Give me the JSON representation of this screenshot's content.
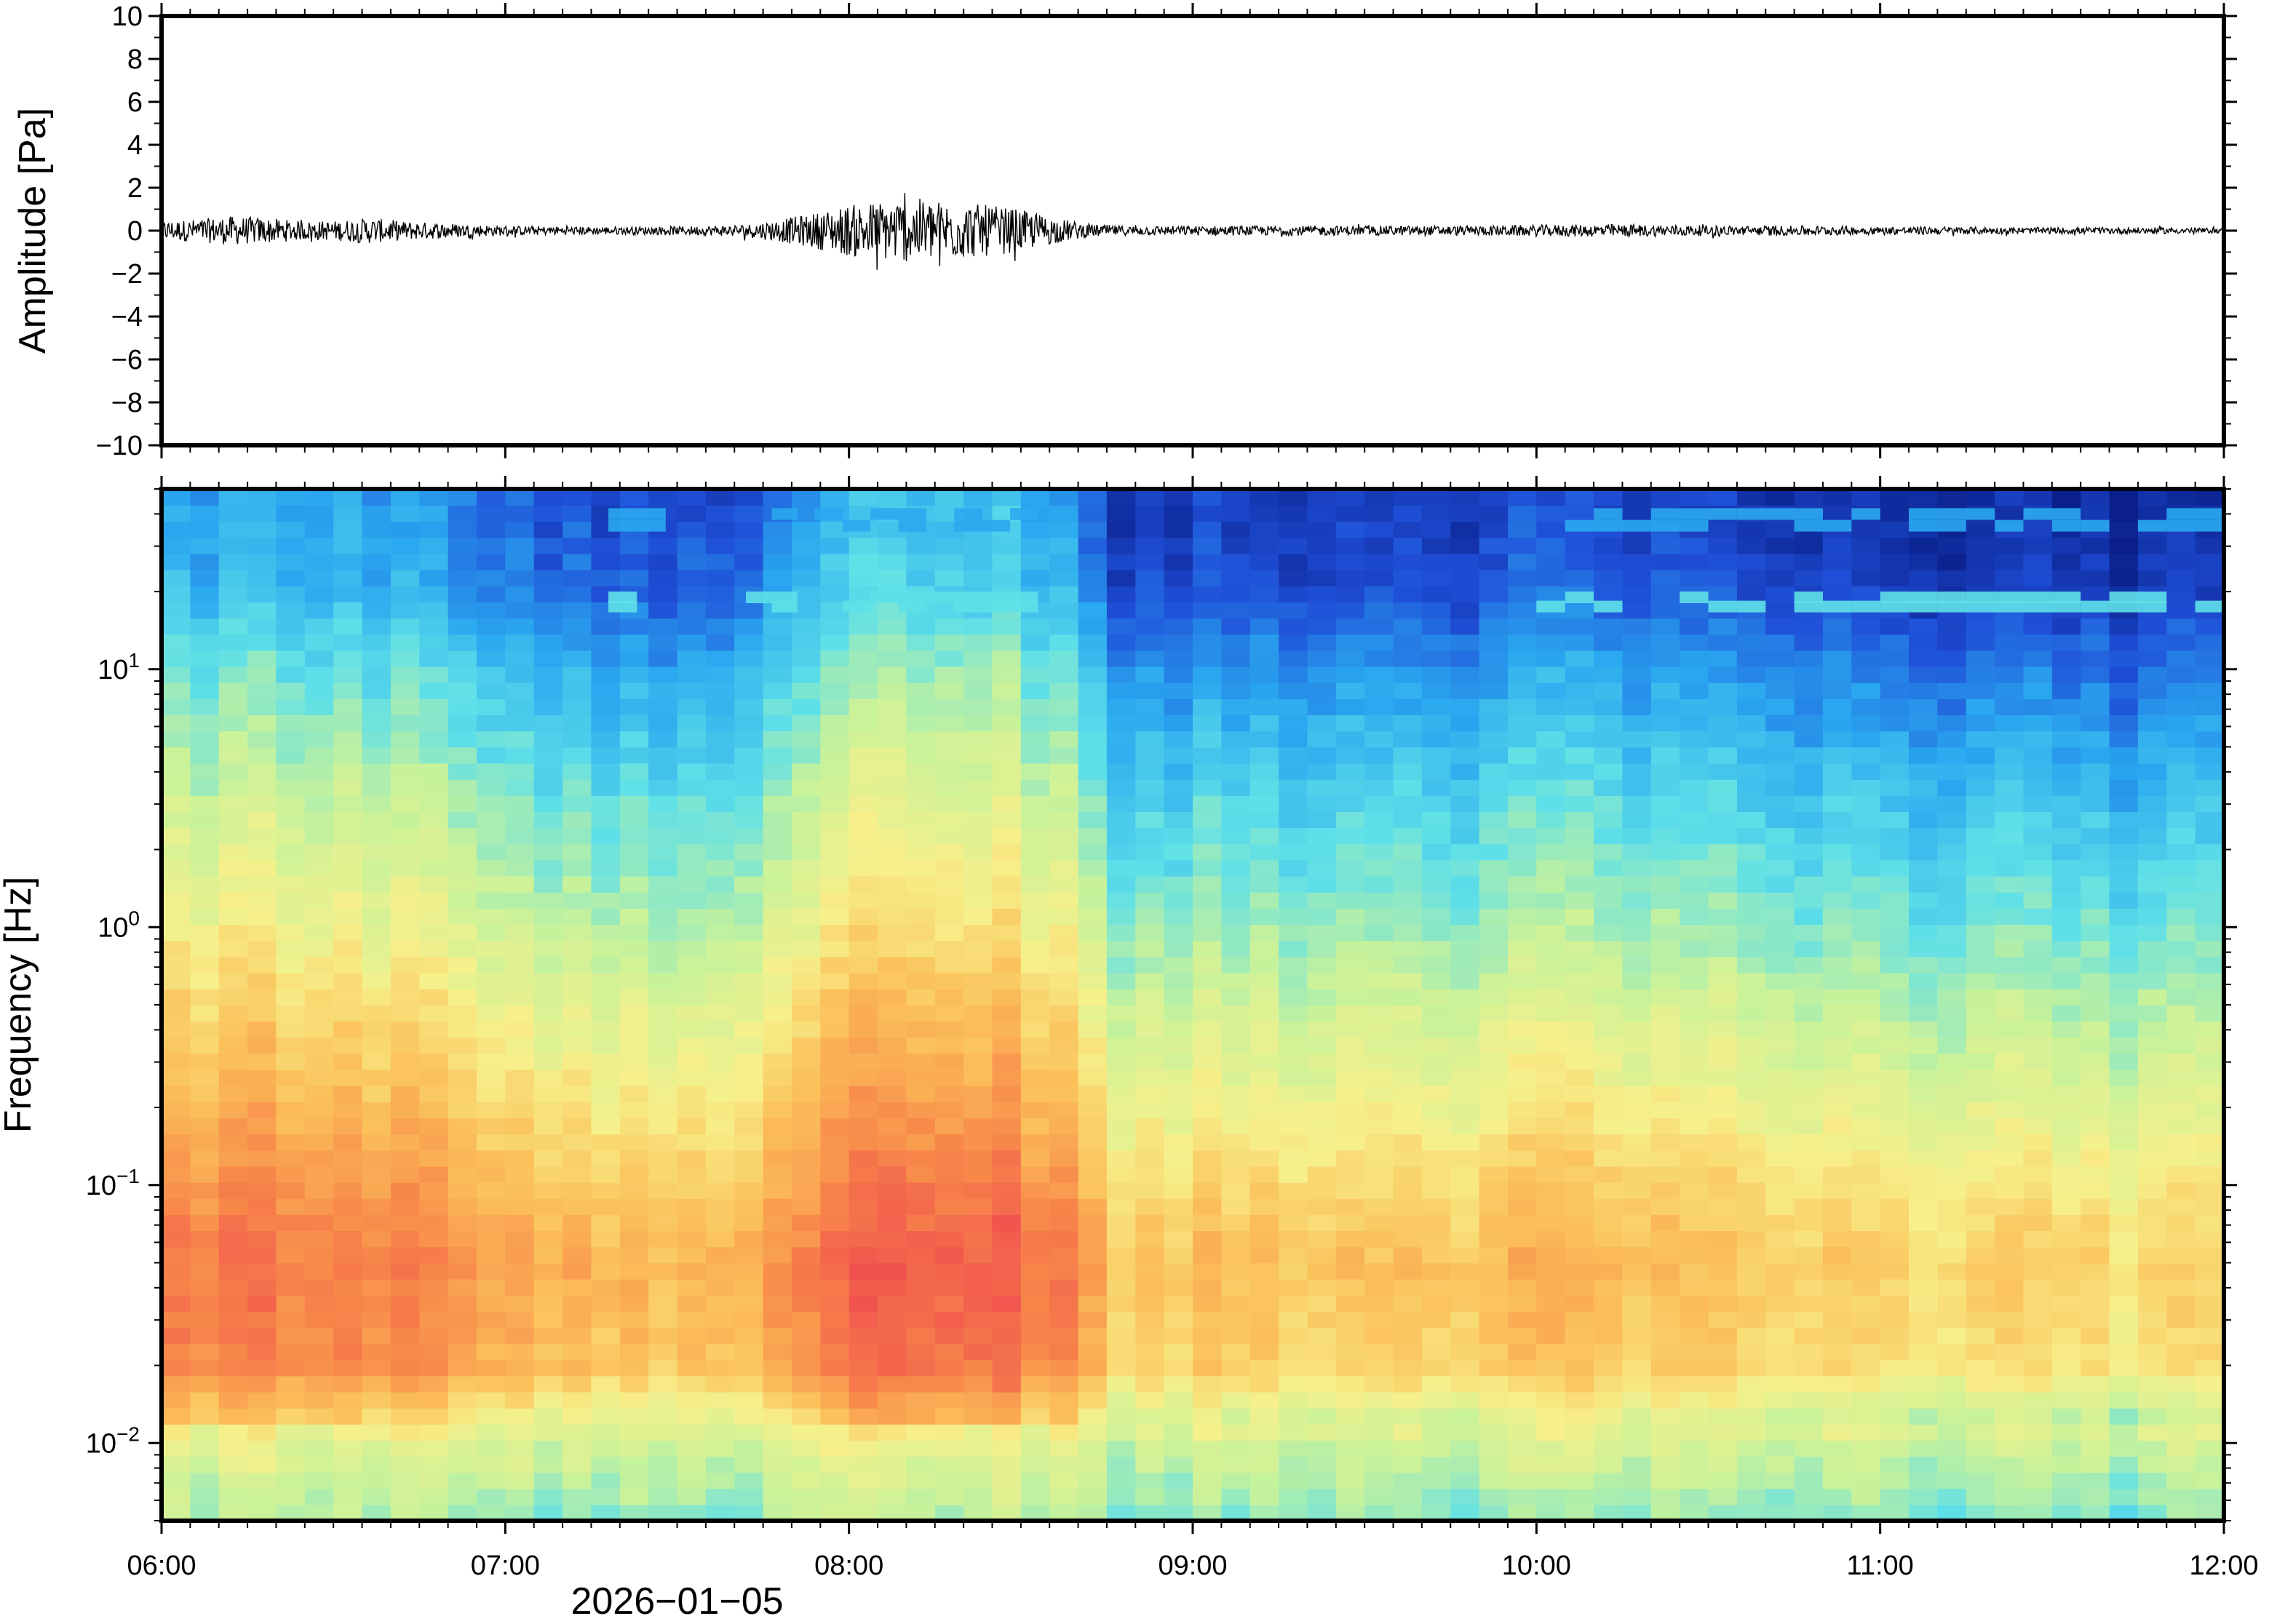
{
  "chart_data": [
    {
      "type": "line",
      "panel": "waveform",
      "ylabel": "Amplitude [Pa]",
      "ylim": [
        -10,
        10
      ],
      "yticks": [
        10,
        8,
        6,
        4,
        2,
        0,
        -2,
        -4,
        -6,
        -8,
        -10
      ],
      "ytick_labels": [
        "10",
        "8",
        "6",
        "4",
        "2",
        "0",
        "−2",
        "−4",
        "−6",
        "−8",
        "−10"
      ],
      "xlim_hours": [
        6.0,
        12.0
      ],
      "trace_color": "#000000",
      "envelope": {
        "x_hours": [
          6.0,
          6.1,
          6.2,
          6.3,
          6.4,
          6.5,
          6.6,
          6.7,
          6.8,
          6.9,
          7.0,
          7.2,
          7.4,
          7.6,
          7.7,
          7.8,
          7.9,
          8.0,
          8.1,
          8.2,
          8.3,
          8.4,
          8.5,
          8.6,
          8.7,
          8.8,
          9.0,
          9.2,
          9.4,
          9.6,
          9.8,
          10.0,
          10.2,
          10.4,
          10.6,
          10.8,
          11.0,
          11.2,
          11.4,
          11.6,
          11.8,
          12.0
        ],
        "amplitude": [
          0.6,
          0.7,
          0.9,
          0.8,
          0.6,
          0.6,
          0.8,
          0.6,
          0.5,
          0.4,
          0.3,
          0.25,
          0.25,
          0.3,
          0.4,
          0.7,
          1.1,
          1.6,
          1.9,
          2.0,
          1.8,
          1.6,
          1.3,
          0.8,
          0.4,
          0.3,
          0.3,
          0.3,
          0.3,
          0.3,
          0.3,
          0.35,
          0.4,
          0.35,
          0.3,
          0.3,
          0.25,
          0.25,
          0.2,
          0.2,
          0.2,
          0.15
        ]
      }
    },
    {
      "type": "heatmap",
      "panel": "spectrogram",
      "ylabel": "Frequency [Hz]",
      "xlabel": "2026−01−05",
      "y_scale": "log",
      "ylim": [
        0.005,
        50
      ],
      "yticks": [
        0.01,
        0.1,
        1,
        10
      ],
      "ytick_labels": [
        {
          "base": "10",
          "exp": "−2"
        },
        {
          "base": "10",
          "exp": "−1"
        },
        {
          "base": "10",
          "exp": "0"
        },
        {
          "base": "10",
          "exp": "1"
        }
      ],
      "xlim_hours": [
        6.0,
        12.0
      ],
      "xticks_hours": [
        6,
        7,
        8,
        9,
        10,
        11,
        12
      ],
      "xtick_labels": [
        "06:00",
        "07:00",
        "08:00",
        "09:00",
        "10:00",
        "11:00",
        "12:00"
      ],
      "colormap": [
        "#0a1f8a",
        "#1f4fd8",
        "#2aa8f0",
        "#5fe0e8",
        "#c8f29a",
        "#f7f08a",
        "#fbc05a",
        "#f88a4a",
        "#f0504e"
      ],
      "intensity_profile": {
        "log_freq": [
          -2.3,
          -2.0,
          -1.7,
          -1.3,
          -1.0,
          -0.6,
          -0.3,
          0.0,
          0.5,
          1.0,
          1.3,
          1.7
        ],
        "level": [
          0.45,
          0.55,
          0.78,
          0.82,
          0.76,
          0.66,
          0.6,
          0.52,
          0.42,
          0.3,
          0.2,
          0.15
        ]
      },
      "time_gain": {
        "x_hours": [
          6.0,
          6.5,
          7.0,
          7.5,
          7.8,
          8.0,
          8.2,
          8.4,
          8.6,
          8.8,
          9.2,
          9.6,
          10.0,
          10.5,
          11.0,
          11.5,
          12.0
        ],
        "gain": [
          0.1,
          0.1,
          0.0,
          -0.05,
          0.02,
          0.12,
          0.18,
          0.16,
          0.08,
          -0.08,
          -0.08,
          -0.08,
          -0.05,
          -0.08,
          -0.12,
          -0.12,
          -0.14
        ]
      },
      "tonal_lines": {
        "freqs_hz": [
          17.5,
          19,
          36,
          40
        ],
        "intervals_hours": [
          [
            7.3,
            7.55
          ],
          [
            7.7,
            7.85
          ],
          [
            7.9,
            8.55
          ],
          [
            10.0,
            12.0
          ]
        ]
      }
    }
  ]
}
